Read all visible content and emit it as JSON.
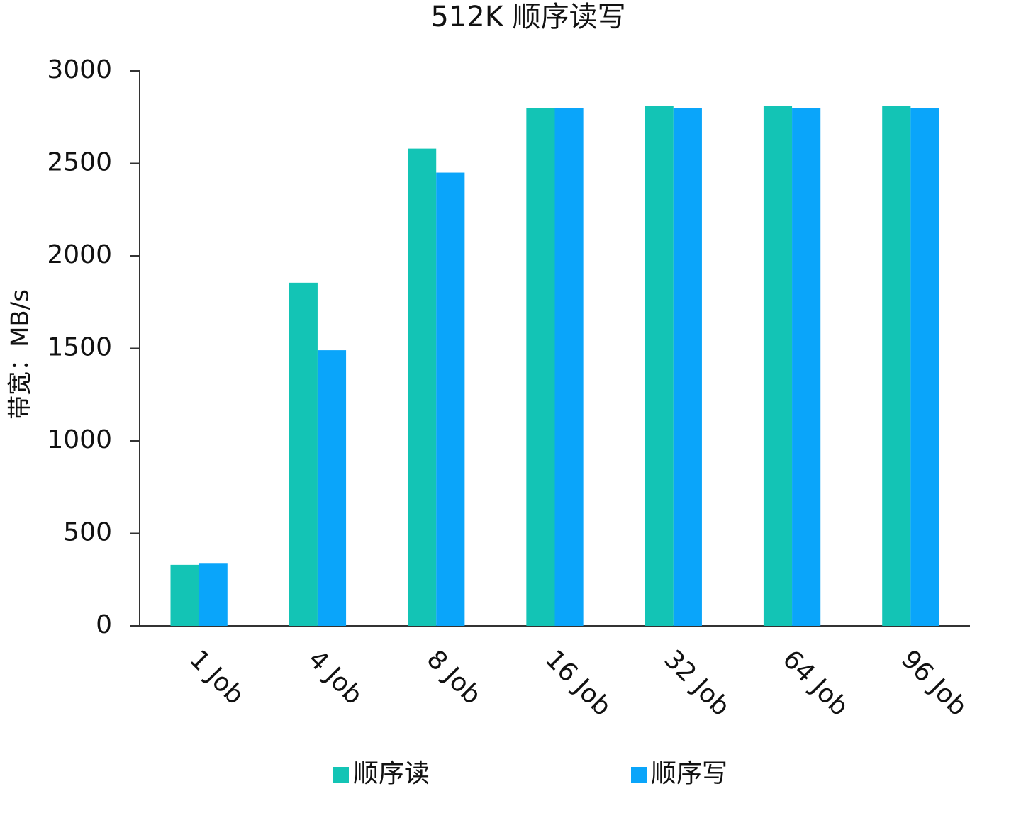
{
  "chart_data": {
    "type": "bar",
    "title": "512K 顺序读写",
    "y_label": "带宽：MB/s",
    "categories": [
      "1 Job",
      "4 Job",
      "8 Job",
      "16 Job",
      "32 Job",
      "64 Job",
      "96 Job"
    ],
    "series": [
      {
        "name": "顺序读",
        "color": "#13c4b5",
        "values": [
          330,
          1855,
          2580,
          2800,
          2810,
          2810,
          2810
        ]
      },
      {
        "name": "顺序写",
        "color": "#0aa5fa",
        "values": [
          340,
          1490,
          2450,
          2800,
          2800,
          2800,
          2800
        ]
      }
    ],
    "ylim": [
      0,
      3000
    ],
    "yticks": [
      0,
      500,
      1000,
      1500,
      2000,
      2500,
      3000
    ],
    "grid": false,
    "legend": "bottom"
  }
}
